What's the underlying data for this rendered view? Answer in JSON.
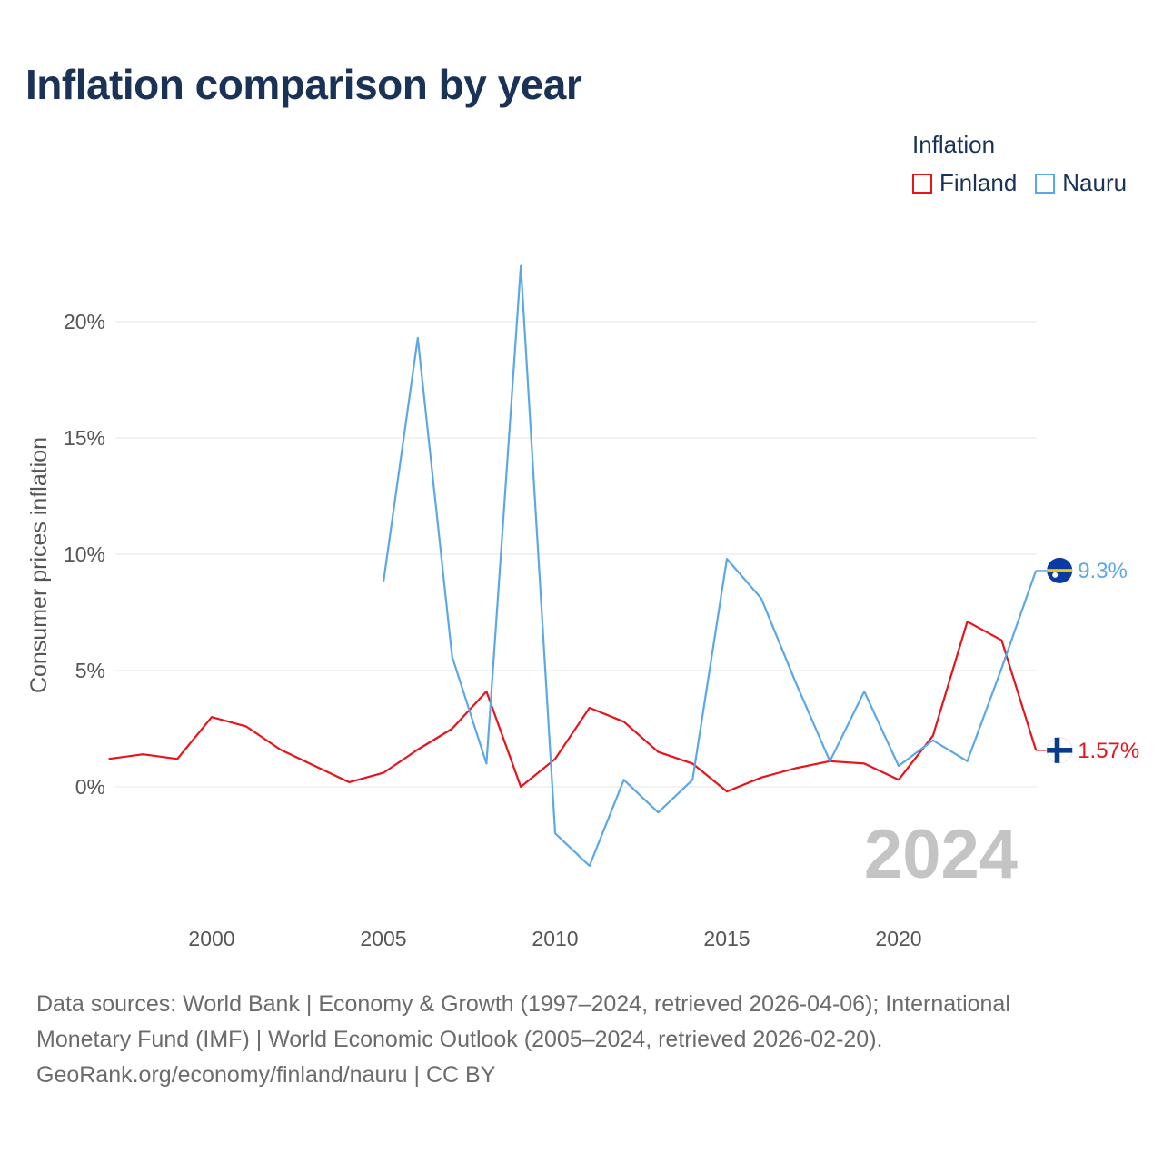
{
  "title": "Inflation comparison by year",
  "legend": {
    "title": "Inflation",
    "items": [
      {
        "label": "Finland",
        "color": "#e8131b"
      },
      {
        "label": "Nauru",
        "color": "#5ca8e6"
      }
    ]
  },
  "footer": {
    "line1": "Data sources: World Bank | Economy & Growth (1997–2024, retrieved 2026-04-06); International",
    "line2": "Monetary Fund (IMF) | World Economic Outlook (2005–2024, retrieved 2026-02-20).",
    "line3": "GeoRank.org/economy/finland/nauru | CC BY"
  },
  "chart_data": {
    "type": "line",
    "title": "Inflation comparison by year",
    "xlabel": "",
    "ylabel": "Consumer prices inflation",
    "xlim": [
      1997,
      2024
    ],
    "ylim": [
      -5,
      23
    ],
    "x_ticks": [
      2000,
      2005,
      2010,
      2015,
      2020
    ],
    "x_tick_labels": [
      "2000",
      "2005",
      "2010",
      "2015",
      "2020"
    ],
    "y_ticks": [
      0,
      5,
      10,
      15,
      20
    ],
    "y_tick_labels": [
      "0%",
      "5%",
      "10%",
      "15%",
      "20%"
    ],
    "grid": true,
    "year_label": "2024",
    "series": [
      {
        "name": "Finland",
        "color": "#e8131b",
        "end_label": "1.57%",
        "flag": "finland-flag-icon",
        "points": [
          [
            1997,
            1.2
          ],
          [
            1998,
            1.4
          ],
          [
            1999,
            1.2
          ],
          [
            2000,
            3.0
          ],
          [
            2001,
            2.6
          ],
          [
            2002,
            1.6
          ],
          [
            2003,
            0.9
          ],
          [
            2004,
            0.2
          ],
          [
            2005,
            0.6
          ],
          [
            2006,
            1.6
          ],
          [
            2007,
            2.5
          ],
          [
            2008,
            4.1
          ],
          [
            2009,
            0.0
          ],
          [
            2010,
            1.2
          ],
          [
            2011,
            3.4
          ],
          [
            2012,
            2.8
          ],
          [
            2013,
            1.5
          ],
          [
            2014,
            1.0
          ],
          [
            2015,
            -0.2
          ],
          [
            2016,
            0.4
          ],
          [
            2017,
            0.8
          ],
          [
            2018,
            1.1
          ],
          [
            2019,
            1.0
          ],
          [
            2020,
            0.3
          ],
          [
            2021,
            2.2
          ],
          [
            2022,
            7.1
          ],
          [
            2023,
            6.3
          ],
          [
            2024,
            1.57
          ]
        ]
      },
      {
        "name": "Nauru",
        "color": "#5ca8e6",
        "end_label": "9.3%",
        "flag": "nauru-flag-icon",
        "points": [
          [
            2005,
            8.8
          ],
          [
            2006,
            19.3
          ],
          [
            2007,
            5.6
          ],
          [
            2008,
            1.0
          ],
          [
            2009,
            22.4
          ],
          [
            2010,
            -2.0
          ],
          [
            2011,
            -3.4
          ],
          [
            2012,
            0.3
          ],
          [
            2013,
            -1.1
          ],
          [
            2014,
            0.3
          ],
          [
            2015,
            9.8
          ],
          [
            2016,
            8.1
          ],
          [
            2017,
            4.5
          ],
          [
            2018,
            1.1
          ],
          [
            2019,
            4.1
          ],
          [
            2020,
            0.9
          ],
          [
            2021,
            2.0
          ],
          [
            2022,
            1.1
          ],
          [
            2023,
            5.1
          ],
          [
            2024,
            9.3
          ]
        ]
      }
    ]
  }
}
